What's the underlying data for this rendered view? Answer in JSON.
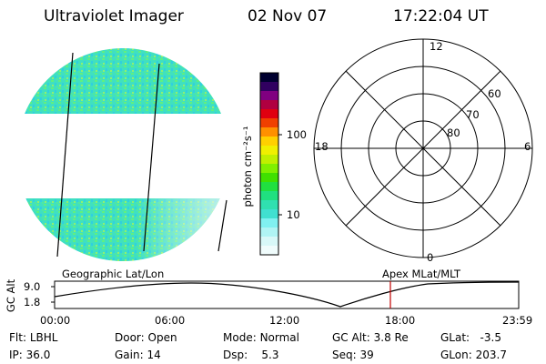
{
  "header": {
    "title": "Ultraviolet Imager",
    "date": "02 Nov 07",
    "time": "17:22:04 UT"
  },
  "colorbar": {
    "unit_label": "photon cm⁻²s⁻¹",
    "ticks": [
      "100",
      "10"
    ]
  },
  "polar_plot": {
    "mlt_labels": {
      "top": "12",
      "left": "18",
      "right": "6",
      "bottom": "0"
    },
    "lat_labels": [
      "60",
      "70",
      "80"
    ]
  },
  "timeline": {
    "ylabel": "GC Alt",
    "yticks": [
      "9.0",
      "1.8"
    ],
    "left_caption": "Geographic Lat/Lon",
    "right_caption": "Apex MLat/MLT",
    "xticks": [
      "00:00",
      "06:00",
      "12:00",
      "18:00",
      "23:59"
    ],
    "marker_time": "17:22"
  },
  "info": {
    "flt": {
      "label": "Flt:",
      "value": "LBHL"
    },
    "ip": {
      "label": "IP:",
      "value": "36.0"
    },
    "door": {
      "label": "Door:",
      "value": "Open"
    },
    "gain": {
      "label": "Gain:",
      "value": "14"
    },
    "mode": {
      "label": "Mode:",
      "value": "Normal"
    },
    "dsp": {
      "label": "Dsp:",
      "value": "5.3"
    },
    "gcalt": {
      "label": "GC Alt:",
      "value": "3.8 Re"
    },
    "seq": {
      "label": "Seq:",
      "value": "39"
    },
    "glat": {
      "label": "GLat:",
      "value": "-3.5"
    },
    "glon": {
      "label": "GLon:",
      "value": "203.7"
    }
  },
  "colors": {
    "marker": "#c00000",
    "image_base": "#40e0c0"
  }
}
